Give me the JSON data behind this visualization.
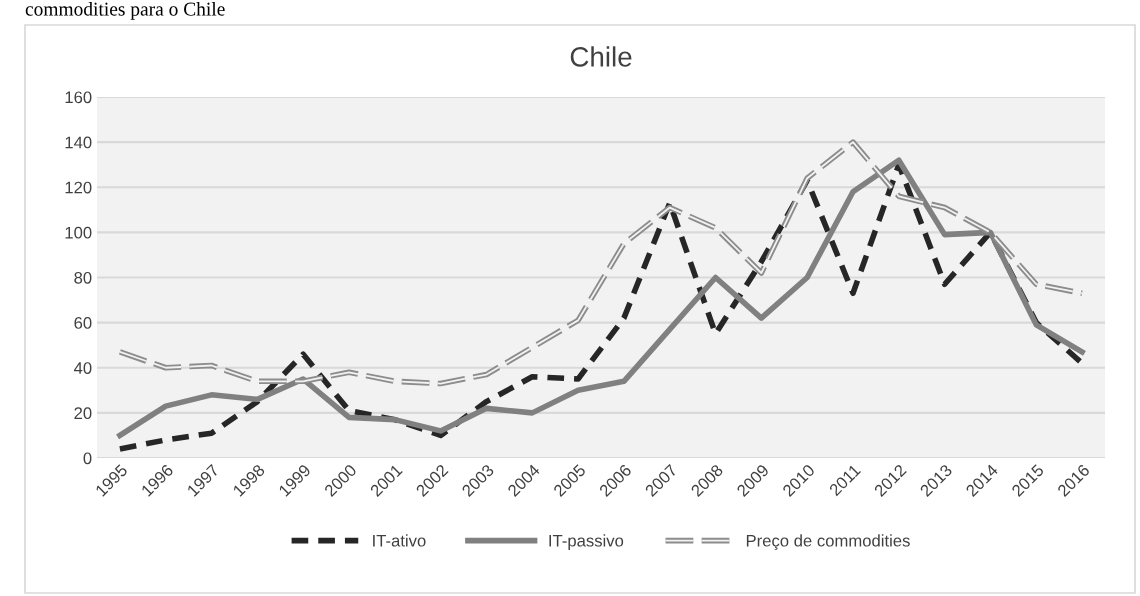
{
  "chart_data": {
    "type": "line",
    "title": "Chile",
    "annotations": [
      "commodities para o Chile"
    ],
    "categories": [
      "1995",
      "1996",
      "1997",
      "1998",
      "1999",
      "2000",
      "2001",
      "2002",
      "2003",
      "2004",
      "2005",
      "2006",
      "2007",
      "2008",
      "2009",
      "2010",
      "2011",
      "2012",
      "2013",
      "2014",
      "2015",
      "2016"
    ],
    "series": [
      {
        "name": "IT-ativo",
        "color": "#262626",
        "line_style": "dashed",
        "values": [
          4,
          8,
          11,
          25,
          46,
          21,
          17,
          10,
          25,
          36,
          35,
          62,
          113,
          55,
          87,
          123,
          73,
          130,
          77,
          100,
          60,
          42
        ]
      },
      {
        "name": "IT-passivo",
        "color": "#808080",
        "line_style": "solid",
        "values": [
          10,
          23,
          28,
          26,
          35,
          18,
          17,
          12,
          22,
          20,
          30,
          34,
          57,
          80,
          62,
          80,
          118,
          132,
          99,
          100,
          59,
          47
        ]
      },
      {
        "name": "Preço de commodities",
        "color": "#8c8c8c",
        "line_style": "dashed",
        "values": [
          47,
          40,
          41,
          34,
          34,
          38,
          34,
          33,
          37,
          49,
          61,
          95,
          111,
          102,
          82,
          124,
          140,
          116,
          111,
          100,
          77,
          73
        ]
      }
    ],
    "ylim": [
      0,
      160
    ],
    "yticks": [
      0,
      20,
      40,
      60,
      80,
      100,
      120,
      140,
      160
    ],
    "grid": "y",
    "legend": "bottom",
    "marker": "none"
  }
}
